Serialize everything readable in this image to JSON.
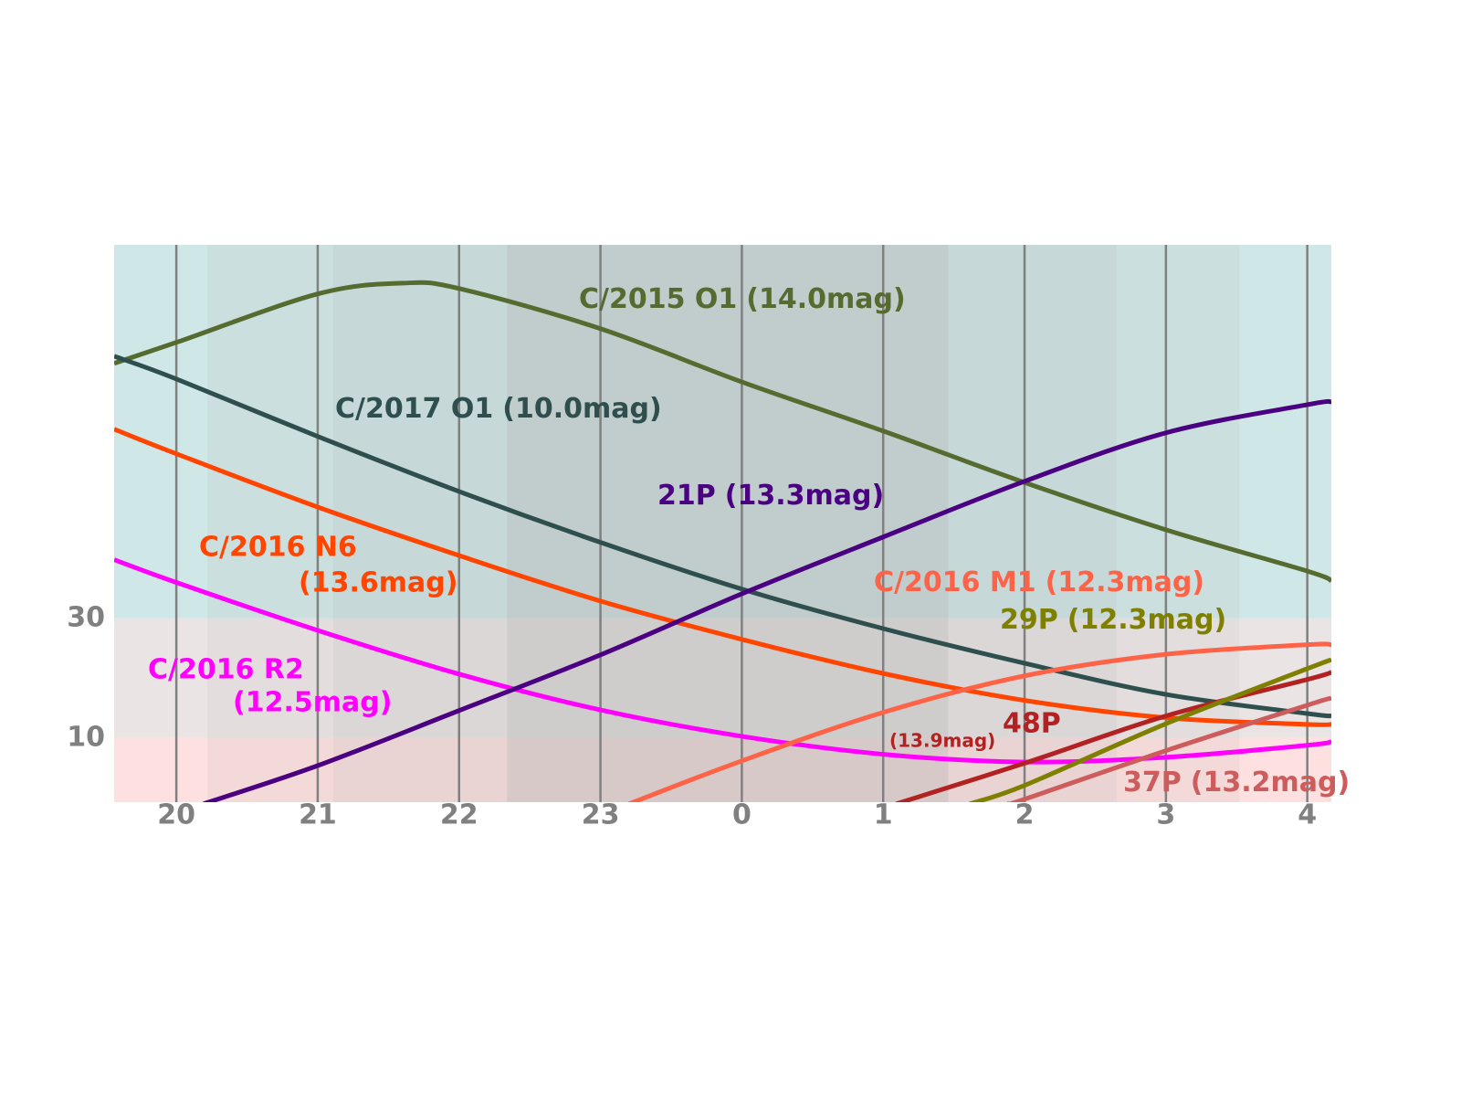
{
  "chart_data": {
    "type": "line",
    "xlim": [
      19.56,
      28.17
    ],
    "ylim": [
      -0.7,
      92.4
    ],
    "xticks": [
      20,
      21,
      22,
      23,
      {
        "value": 24,
        "label": "0"
      },
      {
        "value": 25,
        "label": "1"
      },
      {
        "value": 26,
        "label": "2"
      },
      {
        "value": 27,
        "label": "3"
      },
      {
        "value": 28,
        "label": "4"
      }
    ],
    "yticks": [
      10,
      30
    ],
    "xgrid": true,
    "tick_color": "#808080",
    "zones": [
      {
        "ylim": [
          30,
          92.4
        ],
        "color": "#cfe7e7"
      },
      {
        "ylim": [
          10,
          30
        ],
        "color": "#ebe4e4"
      },
      {
        "ylim": [
          -0.7,
          10
        ],
        "color": "#ffe0e0"
      }
    ],
    "night_color": "#b8b8b8",
    "night_bands": [
      {
        "x": [
          20.22,
          27.52
        ],
        "opacity": 0.15
      },
      {
        "x": [
          21.11,
          26.65
        ],
        "opacity": 0.15
      },
      {
        "x": [
          22.34,
          25.46
        ],
        "opacity": 0.35
      }
    ],
    "series": [
      {
        "name": "C/2015 O1",
        "mag": "(14.0mag)",
        "color": "#556b2f",
        "x": [
          19.56,
          20,
          21,
          21.6,
          22,
          23,
          24,
          25,
          26,
          27,
          28,
          28.17
        ],
        "values": [
          72.6,
          76.1,
          84.2,
          86.0,
          85.1,
          78.4,
          69.5,
          61.3,
          52.7,
          44.8,
          37.9,
          36.3
        ]
      },
      {
        "name": "C/2017 O1",
        "mag": "(10.0mag)",
        "color": "#2f4f4f",
        "x": [
          19.56,
          20,
          21,
          22,
          23,
          24,
          25,
          26,
          27,
          28,
          28.17
        ],
        "values": [
          73.8,
          70.0,
          60.4,
          51.2,
          42.7,
          34.9,
          28.3,
          22.5,
          17.3,
          14.1,
          13.7
        ]
      },
      {
        "name": "C/2016 N6",
        "mag": "(13.6mag)",
        "color": "#ff4500",
        "x": [
          19.56,
          20,
          21,
          22,
          23,
          24,
          25,
          26,
          27,
          28,
          28.17
        ],
        "values": [
          61.6,
          57.5,
          48.6,
          40.5,
          32.9,
          26.5,
          20.8,
          16.3,
          13.4,
          12.3,
          12.3
        ]
      },
      {
        "name": "C/2016 R2",
        "mag": "(12.5mag)",
        "color": "#ff00ff",
        "x": [
          19.56,
          20,
          21,
          22,
          23,
          24,
          25,
          26,
          27,
          28,
          28.17
        ],
        "values": [
          39.8,
          36.0,
          28.0,
          20.7,
          14.7,
          10.3,
          7.3,
          6.0,
          6.8,
          8.8,
          9.4
        ]
      },
      {
        "name": "21P",
        "mag": "(13.3mag)",
        "color": "#4b0082",
        "x": [
          20.19,
          21,
          22,
          23,
          24,
          25,
          26,
          27,
          28,
          28.17
        ],
        "values": [
          -1.0,
          5.4,
          14.6,
          23.9,
          34.1,
          43.6,
          52.9,
          61.0,
          65.7,
          66.2
        ]
      },
      {
        "name": "C/2016 M1",
        "mag": "(12.3mag)",
        "color": "#ff6347",
        "x": [
          23.2,
          24,
          25,
          26,
          27,
          28,
          28.17
        ],
        "values": [
          -1.0,
          6.2,
          14.3,
          20.4,
          24.0,
          25.6,
          25.6
        ]
      },
      {
        "name": "48P",
        "mag": "(13.9mag)",
        "color": "#b22222",
        "x": [
          25.09,
          26,
          27,
          28,
          28.17
        ],
        "values": [
          -1.0,
          5.8,
          13.7,
          19.8,
          21.0
        ]
      },
      {
        "name": "29P",
        "mag": "(12.3mag)",
        "color": "#808000",
        "x": [
          25.61,
          26,
          27,
          28,
          28.17
        ],
        "values": [
          -1.0,
          2.1,
          12.4,
          21.6,
          23.1
        ]
      },
      {
        "name": "37P",
        "mag": "(13.2mag)",
        "color": "#cd5c5c",
        "x": [
          25.88,
          26,
          27,
          28,
          28.17
        ],
        "values": [
          -1.0,
          -0.2,
          7.9,
          15.5,
          16.7
        ]
      }
    ]
  }
}
